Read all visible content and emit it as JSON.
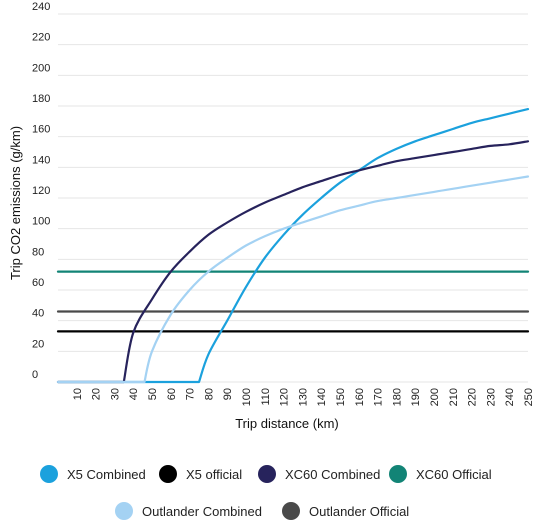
{
  "chart_data": {
    "type": "line",
    "title": "",
    "xlabel": "Trip distance (km)",
    "ylabel": "Trip CO2 emissions (g/km)",
    "xlim": [
      0,
      250
    ],
    "ylim": [
      0,
      240
    ],
    "grid": "horizontal",
    "legend_position": "bottom",
    "x_ticks": [
      10,
      20,
      30,
      40,
      50,
      60,
      70,
      80,
      90,
      100,
      110,
      120,
      130,
      140,
      150,
      160,
      170,
      180,
      190,
      200,
      210,
      220,
      230,
      240,
      250
    ],
    "y_ticks": [
      0,
      20,
      40,
      60,
      80,
      100,
      120,
      140,
      160,
      180,
      200,
      220,
      240
    ],
    "series": [
      {
        "name": "X5 Combined",
        "color": "#1ba1dd",
        "style": "curve",
        "points": [
          [
            0,
            0
          ],
          [
            75,
            0
          ],
          [
            80,
            18
          ],
          [
            90,
            40
          ],
          [
            100,
            62
          ],
          [
            110,
            81
          ],
          [
            120,
            96
          ],
          [
            130,
            109
          ],
          [
            140,
            120
          ],
          [
            150,
            130
          ],
          [
            160,
            138
          ],
          [
            170,
            146
          ],
          [
            180,
            152
          ],
          [
            190,
            157
          ],
          [
            200,
            161
          ],
          [
            210,
            165
          ],
          [
            220,
            169
          ],
          [
            230,
            172
          ],
          [
            240,
            175
          ],
          [
            250,
            178
          ]
        ]
      },
      {
        "name": "X5 official",
        "color": "#000000",
        "style": "flat",
        "points": [
          [
            0,
            33
          ],
          [
            250,
            33
          ]
        ]
      },
      {
        "name": "XC60 Combined",
        "color": "#27235c",
        "style": "curve",
        "points": [
          [
            0,
            0
          ],
          [
            35,
            0
          ],
          [
            40,
            32
          ],
          [
            50,
            54
          ],
          [
            60,
            72
          ],
          [
            70,
            85
          ],
          [
            80,
            96
          ],
          [
            90,
            104
          ],
          [
            100,
            111
          ],
          [
            110,
            117
          ],
          [
            120,
            122
          ],
          [
            130,
            127
          ],
          [
            140,
            131
          ],
          [
            150,
            135
          ],
          [
            160,
            138
          ],
          [
            170,
            141
          ],
          [
            180,
            144
          ],
          [
            190,
            146
          ],
          [
            200,
            148
          ],
          [
            210,
            150
          ],
          [
            220,
            152
          ],
          [
            230,
            154
          ],
          [
            240,
            155
          ],
          [
            250,
            157
          ]
        ]
      },
      {
        "name": "XC60 Official",
        "color": "#128476",
        "style": "flat",
        "points": [
          [
            0,
            72
          ],
          [
            250,
            72
          ]
        ]
      },
      {
        "name": "Outlander Combined",
        "color": "#a4d2f3",
        "style": "curve",
        "points": [
          [
            0,
            0
          ],
          [
            46,
            0
          ],
          [
            50,
            20
          ],
          [
            60,
            44
          ],
          [
            70,
            60
          ],
          [
            80,
            72
          ],
          [
            90,
            81
          ],
          [
            100,
            89
          ],
          [
            110,
            95
          ],
          [
            120,
            100
          ],
          [
            130,
            104
          ],
          [
            140,
            108
          ],
          [
            150,
            112
          ],
          [
            160,
            115
          ],
          [
            170,
            118
          ],
          [
            180,
            120
          ],
          [
            190,
            122
          ],
          [
            200,
            124
          ],
          [
            210,
            126
          ],
          [
            220,
            128
          ],
          [
            230,
            130
          ],
          [
            240,
            132
          ],
          [
            250,
            134
          ]
        ]
      },
      {
        "name": "Outlander Official",
        "color": "#4a4a4a",
        "style": "flat",
        "points": [
          [
            0,
            46
          ],
          [
            250,
            46
          ]
        ]
      }
    ]
  }
}
